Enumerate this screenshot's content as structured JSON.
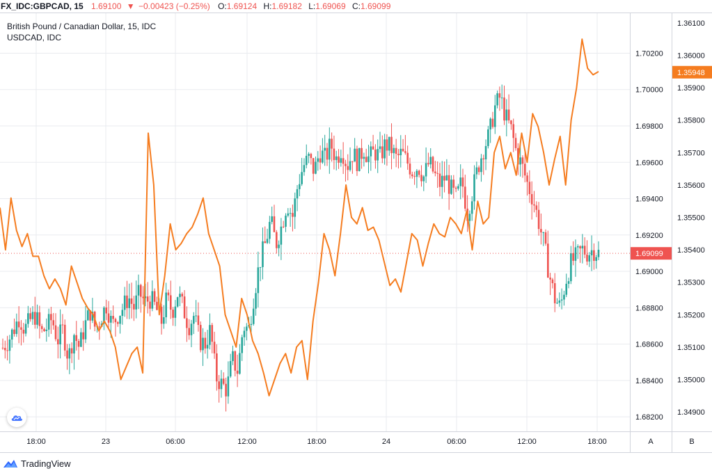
{
  "header": {
    "symbol": "FX_IDC:GBPCAD, 15",
    "last": "1.69100",
    "arrow": "▼",
    "change": "−0.00423 (−0.25%)",
    "o_label": "O:",
    "o_value": "1.69124",
    "h_label": "H:",
    "h_value": "1.69182",
    "l_label": "L:",
    "l_value": "1.69069",
    "c_label": "C:",
    "c_value": "1.69099"
  },
  "legend": {
    "main_title": "British Pound / Canadian Dollar, 15, IDC",
    "overlay_title": "USDCAD, IDC"
  },
  "colors": {
    "up": "#26a69a",
    "down": "#ef5350",
    "overlay": "#f57c1f",
    "grid": "#e9ebef",
    "axis_line": "#d1d4dc"
  },
  "icons": {
    "badge": "tradingview-cloud-icon",
    "logo": "tradingview-logo-icon"
  },
  "footer": {
    "brand": "TradingView"
  },
  "axis_buttons": {
    "a": "A",
    "b": "B"
  },
  "chart_data": {
    "type": "candlestick",
    "grid": true,
    "x_ticks": [
      "18:00",
      "23",
      "06:00",
      "12:00",
      "18:00",
      "24",
      "06:00",
      "12:00",
      "18:00"
    ],
    "left_axis": {
      "range": [
        1.6812,
        1.7042
      ],
      "ticks": [
        "1.70200",
        "1.70000",
        "1.69800",
        "1.69600",
        "1.69400",
        "1.69200",
        "1.69000",
        "1.68800",
        "1.68600",
        "1.68400",
        "1.68200"
      ],
      "last_price_label": "1.69099"
    },
    "right_axis": {
      "range": [
        1.3484,
        1.3613
      ],
      "ticks": [
        "1.36100",
        "1.36000",
        "1.35900",
        "1.35800",
        "1.35700",
        "1.35600",
        "1.35500",
        "1.35400",
        "1.35300",
        "1.35200",
        "1.35100",
        "1.35000",
        "1.34900"
      ],
      "last_value_label": "1.35948"
    },
    "series": [
      {
        "name": "GBPCAD",
        "type": "candlestick",
        "axis": "left",
        "close_path": [
          1.6858,
          1.6862,
          1.6868,
          1.6875,
          1.6868,
          1.6873,
          1.6876,
          1.6866,
          1.6869,
          1.6874,
          1.6862,
          1.6868,
          1.6852,
          1.6866,
          1.6858,
          1.687,
          1.6878,
          1.6868,
          1.6875,
          1.6882,
          1.687,
          1.6876,
          1.688,
          1.6886,
          1.688,
          1.6888,
          1.6883,
          1.6885,
          1.688,
          1.6872,
          1.6885,
          1.6878,
          1.6888,
          1.688,
          1.687,
          1.6876,
          1.6862,
          1.686,
          1.6868,
          1.6842,
          1.6838,
          1.6835,
          1.6852,
          1.6845,
          1.687,
          1.6868,
          1.6888,
          1.6905,
          1.6915,
          1.6928,
          1.6915,
          1.6925,
          1.6938,
          1.693,
          1.6948,
          1.6958,
          1.6962,
          1.6955,
          1.6966,
          1.6962,
          1.697,
          1.6962,
          1.6968,
          1.6958,
          1.6965,
          1.696,
          1.6968,
          1.6962,
          1.6966,
          1.6963,
          1.697,
          1.6968,
          1.6962,
          1.6965,
          1.696,
          1.6955,
          1.6958,
          1.6952,
          1.696,
          1.6953,
          1.6948,
          1.6952,
          1.6945,
          1.694,
          1.695,
          1.6932,
          1.6945,
          1.6958,
          1.6968,
          1.6975,
          1.699,
          1.6996,
          1.6985,
          1.6978,
          1.6965,
          1.6958,
          1.6948,
          1.694,
          1.6928,
          1.6915,
          1.6898,
          1.6885,
          1.688,
          1.6895,
          1.6905,
          1.6908,
          1.6912,
          1.691,
          1.6912,
          1.691
        ],
        "last_close": 1.69099
      },
      {
        "name": "USDCAD",
        "type": "line",
        "axis": "right",
        "values": [
          1.3553,
          1.354,
          1.3556,
          1.3546,
          1.3541,
          1.3545,
          1.3538,
          1.3538,
          1.3532,
          1.3528,
          1.3531,
          1.3528,
          1.3523,
          1.3535,
          1.353,
          1.3525,
          1.3522,
          1.352,
          1.3515,
          1.3518,
          1.3515,
          1.351,
          1.35,
          1.3504,
          1.3508,
          1.351,
          1.3502,
          1.3576,
          1.356,
          1.352,
          1.3532,
          1.3548,
          1.354,
          1.3542,
          1.3545,
          1.3547,
          1.3551,
          1.3556,
          1.3545,
          1.354,
          1.3535,
          1.352,
          1.3515,
          1.351,
          1.3525,
          1.352,
          1.3512,
          1.3508,
          1.3502,
          1.3495,
          1.35,
          1.3505,
          1.3508,
          1.3502,
          1.351,
          1.3512,
          1.35,
          1.3518,
          1.353,
          1.3545,
          1.354,
          1.3532,
          1.3545,
          1.356,
          1.355,
          1.3548,
          1.3553,
          1.3546,
          1.3547,
          1.3543,
          1.3536,
          1.3529,
          1.3531,
          1.3527,
          1.3536,
          1.3545,
          1.3543,
          1.3535,
          1.3542,
          1.3548,
          1.3545,
          1.3544,
          1.355,
          1.3548,
          1.3545,
          1.3552,
          1.354,
          1.3555,
          1.3548,
          1.355,
          1.357,
          1.3575,
          1.3565,
          1.357,
          1.3563,
          1.3576,
          1.3567,
          1.3582,
          1.3578,
          1.357,
          1.356,
          1.3568,
          1.3575,
          1.356,
          1.358,
          1.359,
          1.3605,
          1.3596,
          1.3594,
          1.3595
        ],
        "last_value": 1.35948
      }
    ]
  }
}
